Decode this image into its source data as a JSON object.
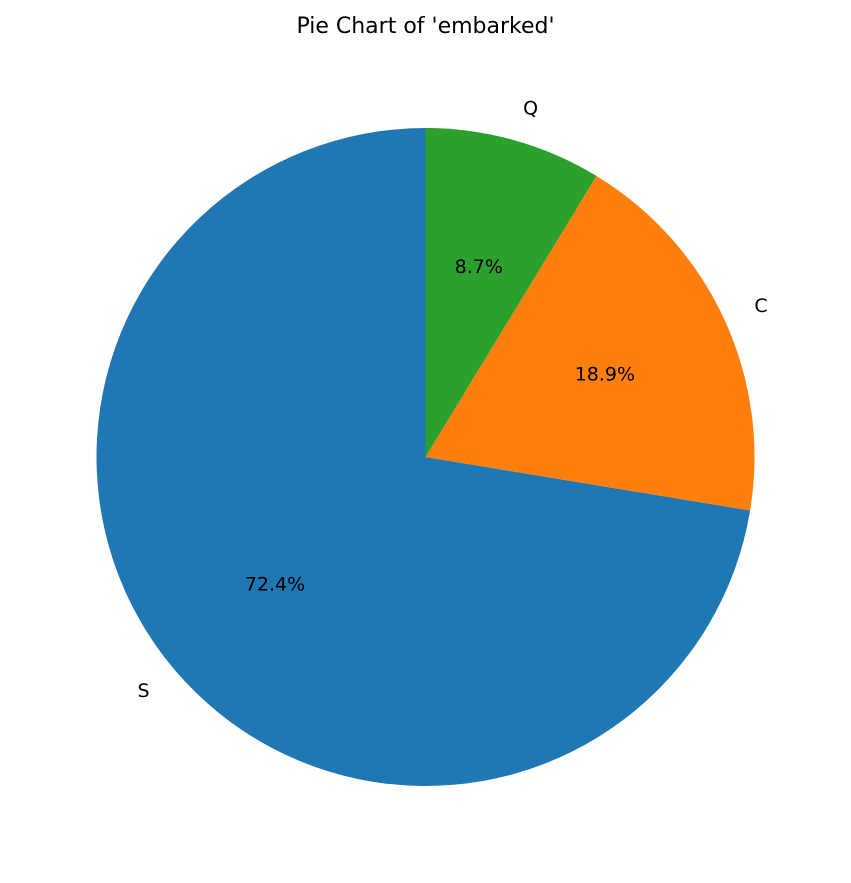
{
  "chart_data": {
    "type": "pie",
    "title": "Pie Chart of 'embarked'",
    "categories": [
      "S",
      "C",
      "Q"
    ],
    "values": [
      72.4,
      18.9,
      8.7
    ],
    "value_labels": [
      "72.4%",
      "18.9%",
      "8.7%"
    ],
    "colors": [
      "#1f77b4",
      "#ff7f0e",
      "#2ca02c"
    ],
    "start_angle_deg": 90,
    "direction": "counterclockwise",
    "legend": "none"
  }
}
